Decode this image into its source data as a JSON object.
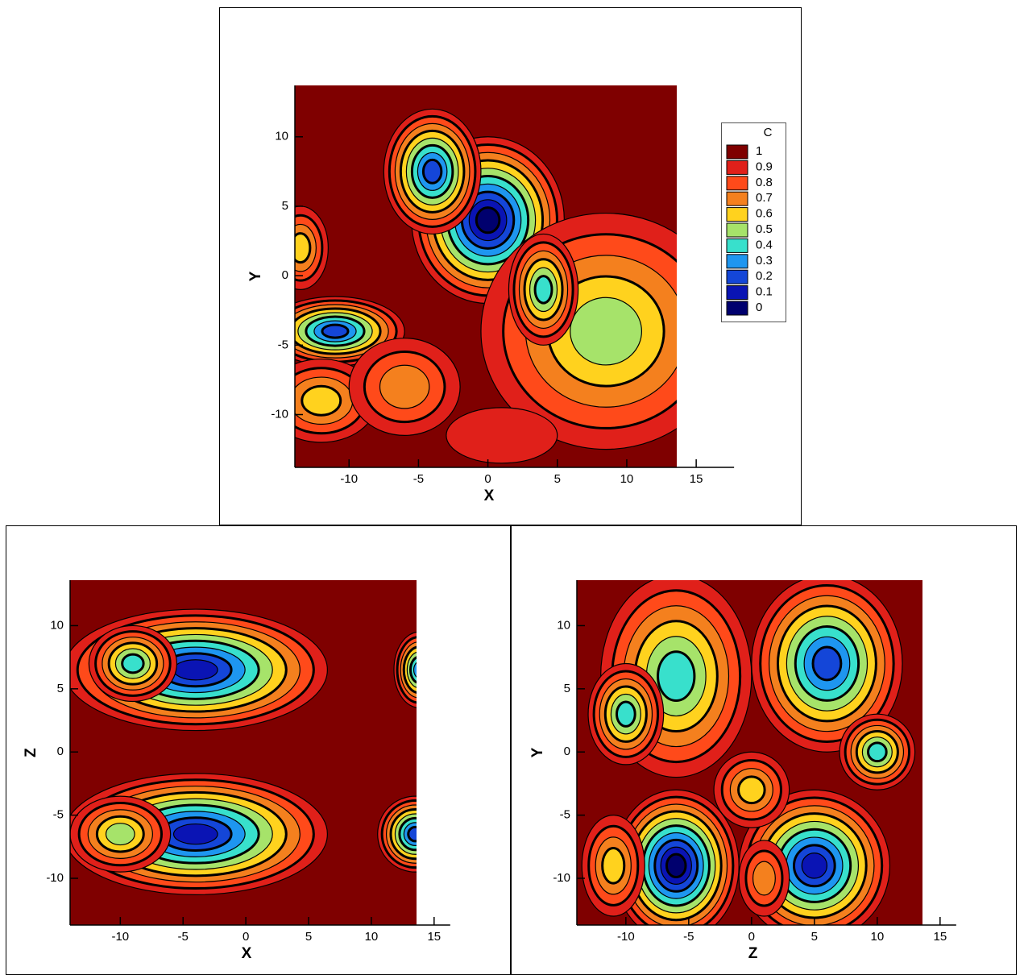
{
  "chart_data": [
    {
      "type": "contour",
      "xlabel": "X",
      "ylabel": "Y",
      "xlim": [
        -13.9,
        13.6
      ],
      "ylim": [
        -13.8,
        13.7
      ],
      "xticks": [
        -10,
        -5,
        0,
        5,
        10,
        15
      ],
      "yticks": [
        -10,
        -5,
        0,
        5,
        10
      ],
      "legend": {
        "title": "C",
        "levels": [
          1,
          0.9,
          0.8,
          0.7,
          0.6,
          0.5,
          0.4,
          0.3,
          0.2,
          0.1,
          0
        ],
        "colors": [
          "#7f0000",
          "#e0201a",
          "#ff4a1a",
          "#f4801e",
          "#ffd21e",
          "#a6e36a",
          "#38e0cc",
          "#1e96f0",
          "#1446d8",
          "#0a14b4",
          "#00006e"
        ]
      }
    },
    {
      "type": "contour",
      "xlabel": "X",
      "ylabel": "Z",
      "xlim": [
        -14,
        13.6
      ],
      "ylim": [
        -13.7,
        13.6
      ],
      "xticks": [
        -10,
        -5,
        0,
        5,
        10,
        15
      ],
      "yticks": [
        -10,
        -5,
        0,
        5,
        10
      ]
    },
    {
      "type": "contour",
      "xlabel": "Z",
      "ylabel": "Y",
      "xlim": [
        -13.9,
        13.6
      ],
      "ylim": [
        -13.7,
        13.6
      ],
      "xticks": [
        -10,
        -5,
        0,
        5,
        10,
        15
      ],
      "yticks": [
        -10,
        -5,
        0,
        5,
        10
      ]
    }
  ]
}
